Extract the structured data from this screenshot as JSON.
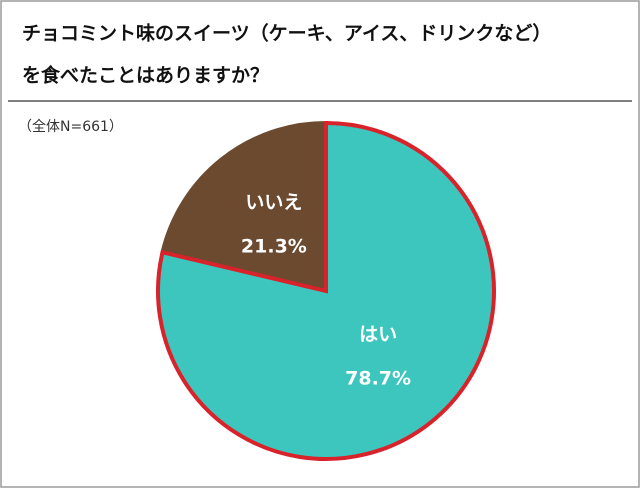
{
  "chart_data": {
    "type": "pie",
    "title": [
      "チョコミント味のスイーツ（ケーキ、アイス、ドリンクなど）",
      "を食べたことはありますか？"
    ],
    "subtitle": "（全体N=661）",
    "categories": [
      "はい",
      "いいえ"
    ],
    "values": [
      78.7,
      21.3
    ],
    "value_labels": [
      "78.7%",
      "21.3%"
    ],
    "colors": [
      "#3cc6bd",
      "#6b4a2f"
    ],
    "edge_colors": [
      "#d9232b",
      "#6b4a2f"
    ]
  }
}
